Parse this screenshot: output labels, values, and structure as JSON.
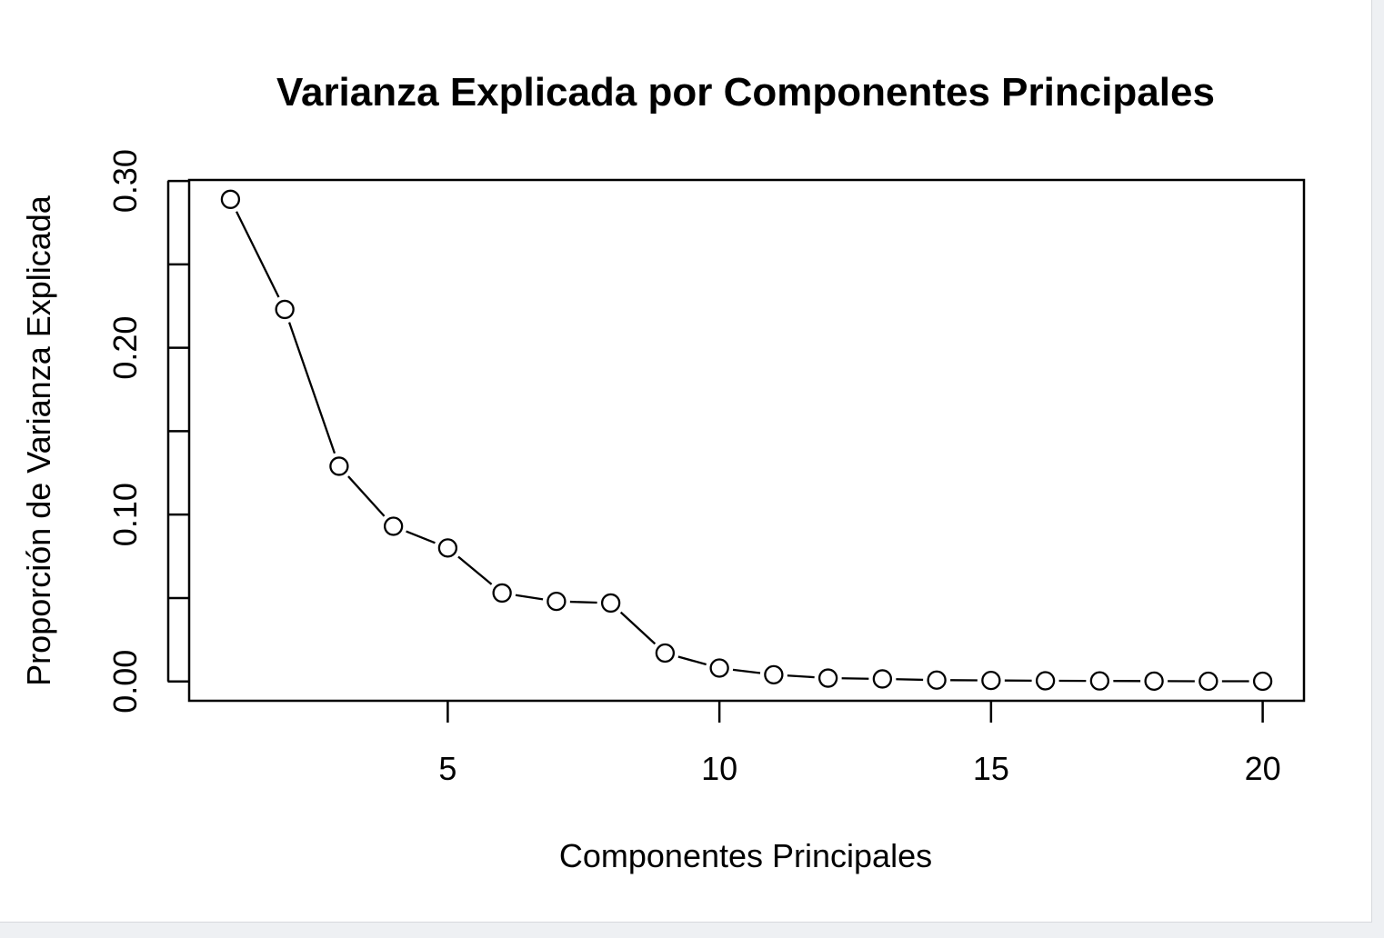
{
  "chart_data": {
    "type": "line",
    "title": "Varianza Explicada por Componentes Principales",
    "xlabel": "Componentes Principales",
    "ylabel": "Proporción de Varianza Explicada",
    "x": [
      1,
      2,
      3,
      4,
      5,
      6,
      7,
      8,
      9,
      10,
      11,
      12,
      13,
      14,
      15,
      16,
      17,
      18,
      19,
      20
    ],
    "values": [
      0.289,
      0.223,
      0.129,
      0.093,
      0.08,
      0.053,
      0.048,
      0.047,
      0.017,
      0.008,
      0.004,
      0.002,
      0.0015,
      0.0008,
      0.0006,
      0.0004,
      0.0003,
      0.0002,
      0.0001,
      0.0001
    ],
    "xticks": [
      5,
      10,
      15,
      20
    ],
    "xtick_labels": [
      "5",
      "10",
      "15",
      "20"
    ],
    "yticks": [
      0,
      0.05,
      0.1,
      0.15,
      0.2,
      0.25,
      0.3
    ],
    "ytick_labels": [
      "0.00",
      "",
      "0.10",
      "",
      "0.20",
      "",
      "0.30"
    ],
    "xlim": [
      0.24,
      20.76
    ],
    "ylim": [
      -0.0116,
      0.3006
    ],
    "marker": "open-circle",
    "line_style": "b",
    "grid": false,
    "colors": {
      "line": "#000000",
      "marker_fill": "#ffffff"
    }
  }
}
